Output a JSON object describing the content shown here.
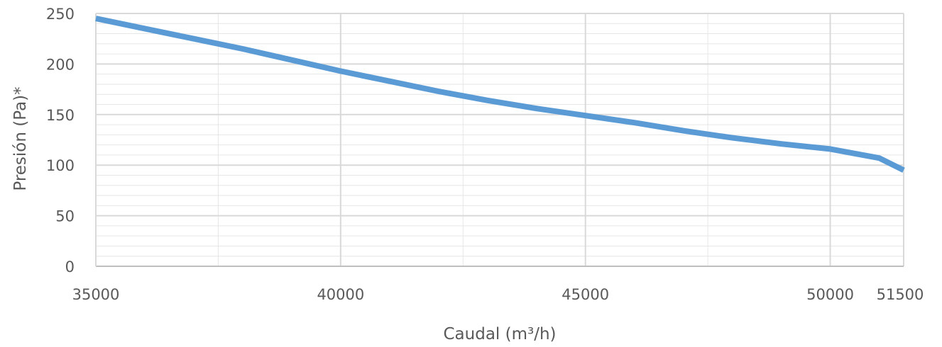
{
  "chart_data": {
    "type": "line",
    "title": "",
    "xlabel": "Caudal (m³/h)",
    "ylabel": "Presión (Pa)*",
    "xlim": [
      35000,
      51500
    ],
    "ylim": [
      0,
      250
    ],
    "x_ticks": [
      "35000",
      "40000",
      "45000",
      "50000",
      "51500"
    ],
    "y_ticks": [
      "0",
      "50",
      "100",
      "150",
      "200",
      "250"
    ],
    "grid": true,
    "legend": "none",
    "series_color": "#5B9BD5",
    "series": [
      {
        "x": [
          35000,
          36000,
          37000,
          38000,
          39000,
          40000,
          41000,
          42000,
          43000,
          44000,
          45000,
          46000,
          47000,
          48000,
          49000,
          50000,
          51000,
          51500
        ],
        "y": [
          245,
          235,
          225,
          215,
          204,
          193,
          183,
          173,
          164,
          156,
          149,
          142,
          134,
          127,
          121,
          116,
          107,
          95
        ]
      }
    ]
  }
}
